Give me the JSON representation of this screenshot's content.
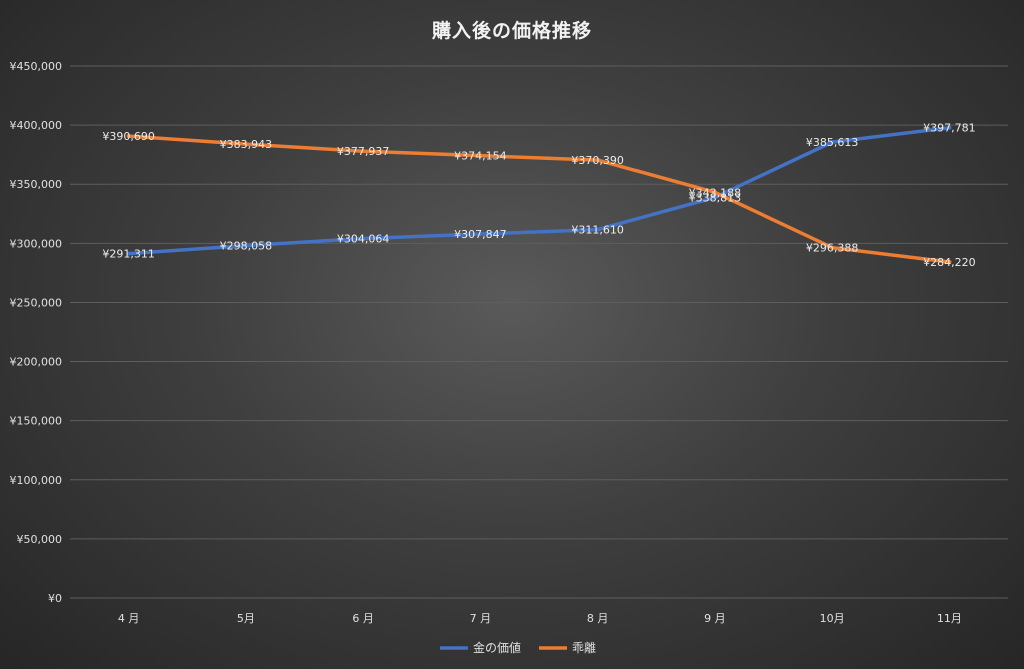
{
  "chart_data": {
    "type": "line",
    "title": "購入後の価格推移",
    "xlabel": "",
    "ylabel": "",
    "categories": [
      "4 月",
      "5月",
      "6 月",
      "7 月",
      "8 月",
      "9 月",
      "10月",
      "11月"
    ],
    "ylim": [
      0,
      450000
    ],
    "yticks": [
      0,
      50000,
      100000,
      150000,
      200000,
      250000,
      300000,
      350000,
      400000,
      450000
    ],
    "ytick_labels": [
      "¥0",
      "¥50,000",
      "¥100,000",
      "¥150,000",
      "¥200,000",
      "¥250,000",
      "¥300,000",
      "¥350,000",
      "¥400,000",
      "¥450,000"
    ],
    "grid": true,
    "legend_position": "bottom",
    "series": [
      {
        "name": "金の価値",
        "color": "#4472c4",
        "values": [
          291311,
          298058,
          304064,
          307847,
          311610,
          338813,
          385613,
          397781
        ],
        "labels": [
          "¥291,311",
          "¥298,058",
          "¥304,064",
          "¥307,847",
          "¥311,610",
          "¥338,813",
          "¥385,613",
          "¥397,781"
        ]
      },
      {
        "name": "乖離",
        "color": "#ed7d31",
        "values": [
          390690,
          383943,
          377937,
          374154,
          370390,
          343188,
          296388,
          284220
        ],
        "labels": [
          "¥390,690",
          "¥383,943",
          "¥377,937",
          "¥374,154",
          "¥370,390",
          "¥343,188",
          "¥296,388",
          "¥284,220"
        ]
      }
    ]
  }
}
